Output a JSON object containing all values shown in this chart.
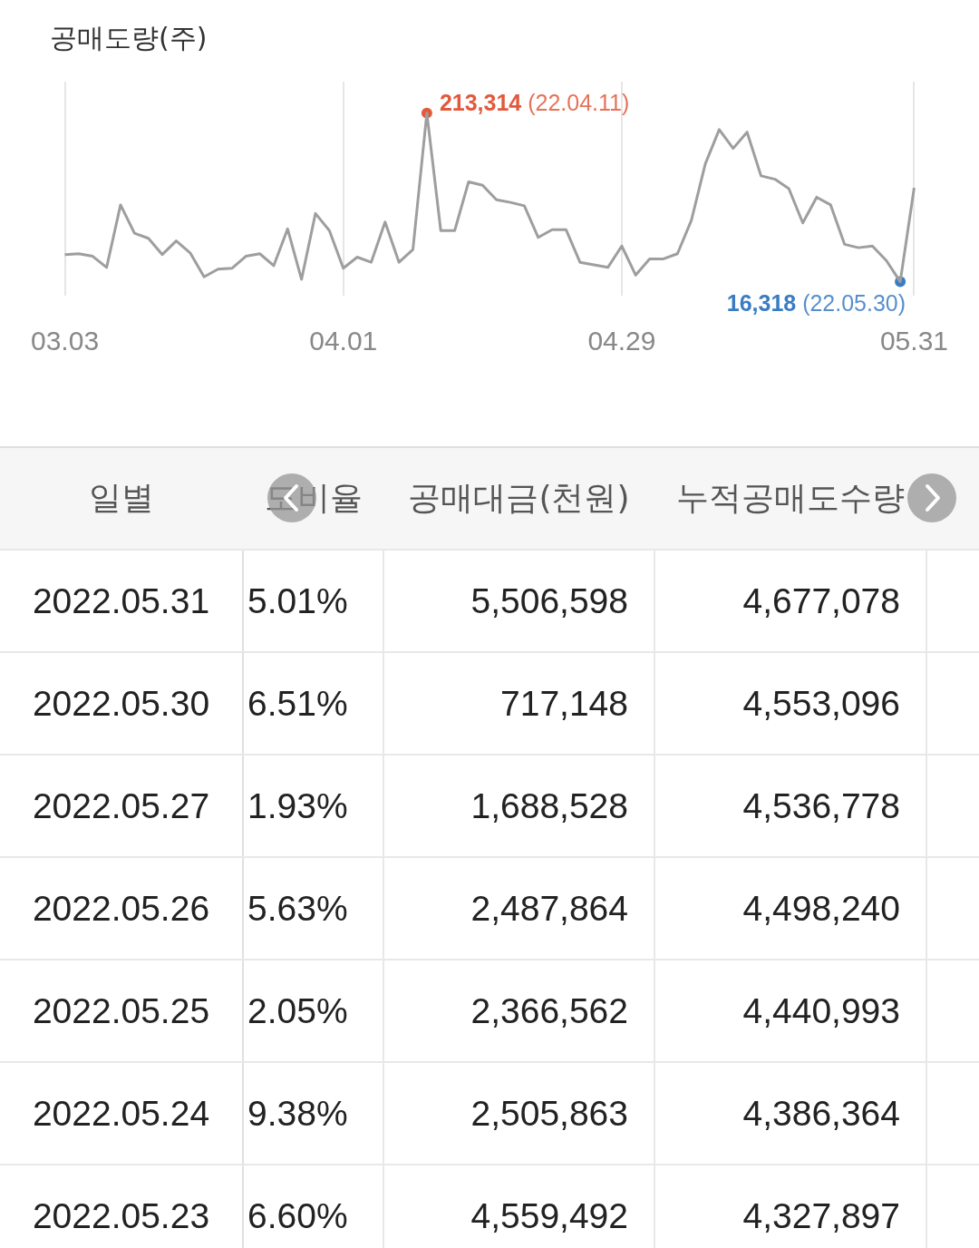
{
  "chart_data": [
    {
      "type": "line",
      "ylabel": "공매도량(주)",
      "grid": "x",
      "categories": [
        "03.03",
        null,
        null,
        null,
        null,
        null,
        null,
        null,
        null,
        null,
        null,
        null,
        null,
        null,
        null,
        null,
        null,
        null,
        null,
        null,
        "04.01",
        null,
        null,
        null,
        null,
        null,
        null,
        null,
        null,
        null,
        null,
        null,
        null,
        null,
        null,
        null,
        null,
        null,
        null,
        null,
        "04.29",
        null,
        null,
        null,
        null,
        null,
        null,
        null,
        null,
        null,
        null,
        null,
        null,
        null,
        null,
        null,
        null,
        null,
        null,
        null,
        null,
        "05.31"
      ],
      "series": [
        {
          "type": "line",
          "color": "#9e9e9e",
          "values": [
            48000,
            49000,
            46000,
            33000,
            106000,
            73000,
            67000,
            48000,
            64000,
            50000,
            22000,
            31000,
            32000,
            46000,
            49000,
            35000,
            78000,
            19000,
            96000,
            76000,
            32000,
            45000,
            39000,
            86000,
            39000,
            54000,
            213314,
            76000,
            76000,
            133000,
            129000,
            112000,
            109000,
            105000,
            68000,
            77000,
            77000,
            39000,
            36000,
            33000,
            58000,
            24000,
            43000,
            43000,
            49000,
            88000,
            154000,
            194000,
            172000,
            191000,
            140000,
            136000,
            125000,
            85000,
            115000,
            106000,
            60000,
            56000,
            58000,
            41000,
            16318,
            126000
          ]
        },
        {
          "type": "scatter",
          "marker": "circle",
          "color": "#e25a3c",
          "values": [
            null,
            null,
            null,
            null,
            null,
            null,
            null,
            null,
            null,
            null,
            null,
            null,
            null,
            null,
            null,
            null,
            null,
            null,
            null,
            null,
            null,
            null,
            null,
            null,
            null,
            null,
            213314,
            null,
            null,
            null,
            null,
            null,
            null,
            null,
            null,
            null,
            null,
            null,
            null,
            null,
            null,
            null,
            null,
            null,
            null,
            null,
            null,
            null,
            null,
            null,
            null,
            null,
            null,
            null,
            null,
            null,
            null,
            null,
            null,
            null,
            null,
            null
          ],
          "value_labels": [
            null,
            null,
            null,
            null,
            null,
            null,
            null,
            null,
            null,
            null,
            null,
            null,
            null,
            null,
            null,
            null,
            null,
            null,
            null,
            null,
            null,
            null,
            null,
            null,
            null,
            null,
            "213,314 (22.04.11)",
            null,
            null,
            null,
            null,
            null,
            null,
            null,
            null,
            null,
            null,
            null,
            null,
            null,
            null,
            null,
            null,
            null,
            null,
            null,
            null,
            null,
            null,
            null,
            null,
            null,
            null,
            null,
            null,
            null,
            null,
            null,
            null,
            null,
            null,
            null
          ]
        },
        {
          "type": "scatter",
          "marker": "circle",
          "color": "#3a7cc3",
          "values": [
            null,
            null,
            null,
            null,
            null,
            null,
            null,
            null,
            null,
            null,
            null,
            null,
            null,
            null,
            null,
            null,
            null,
            null,
            null,
            null,
            null,
            null,
            null,
            null,
            null,
            null,
            null,
            null,
            null,
            null,
            null,
            null,
            null,
            null,
            null,
            null,
            null,
            null,
            null,
            null,
            null,
            null,
            null,
            null,
            null,
            null,
            null,
            null,
            null,
            null,
            null,
            null,
            null,
            null,
            null,
            null,
            null,
            null,
            null,
            null,
            16318,
            null
          ],
          "value_labels": [
            null,
            null,
            null,
            null,
            null,
            null,
            null,
            null,
            null,
            null,
            null,
            null,
            null,
            null,
            null,
            null,
            null,
            null,
            null,
            null,
            null,
            null,
            null,
            null,
            null,
            null,
            null,
            null,
            null,
            null,
            null,
            null,
            null,
            null,
            null,
            null,
            null,
            null,
            null,
            null,
            null,
            null,
            null,
            null,
            null,
            null,
            null,
            null,
            null,
            null,
            null,
            null,
            null,
            null,
            null,
            null,
            null,
            null,
            null,
            null,
            "16,318 (22.05.30)",
            null
          ]
        }
      ]
    },
    {
      "type": "other",
      "categories": [
        "일별",
        "도비율",
        "공매대금(천원)",
        "누적공매도수량"
      ],
      "annotations": [
        "2022.05.31",
        "5.01%",
        "5,506,598",
        "4,677,078",
        "2022.05.30",
        "6.51%",
        "717,148",
        "4,553,096",
        "2022.05.27",
        "1.93%",
        "1,688,528",
        "4,536,778",
        "2022.05.26",
        "5.63%",
        "2,487,864",
        "4,498,240",
        "2022.05.25",
        "2.05%",
        "2,366,562",
        "4,440,993",
        "2022.05.24",
        "9.38%",
        "2,505,863",
        "4,386,364",
        "2022.05.23",
        "6.60%",
        "4,559,492",
        "4,327,897"
      ]
    }
  ]
}
